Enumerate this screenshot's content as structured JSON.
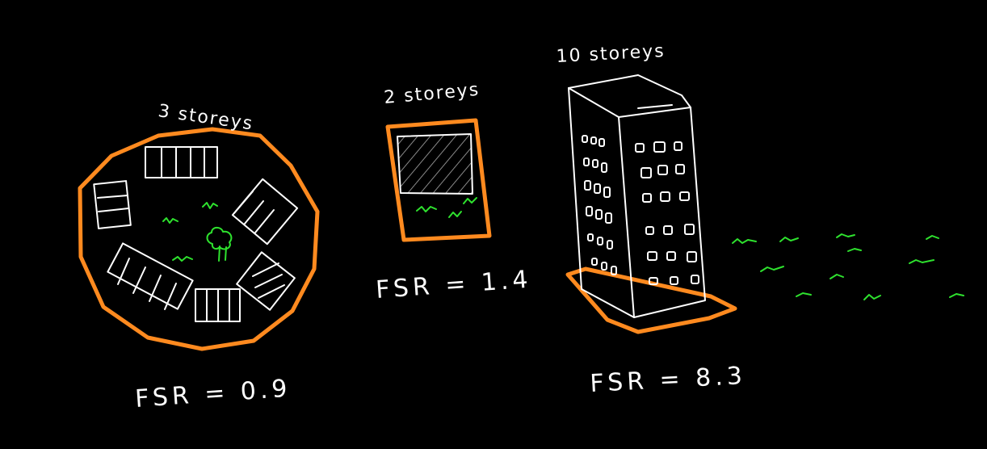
{
  "colors": {
    "background": "#000000",
    "stroke": "#ffffff",
    "site_outline": "#ff8a1f",
    "grass": "#2ee22e",
    "hatch": "#8a8a8a"
  },
  "panels": [
    {
      "storeys_label": "3 storeys",
      "fsr_label": "FSR = 0.9"
    },
    {
      "storeys_label": "2 storeys",
      "fsr_label": "FSR = 1.4"
    },
    {
      "storeys_label": "10 storeys",
      "fsr_label": "FSR = 8.3"
    }
  ]
}
